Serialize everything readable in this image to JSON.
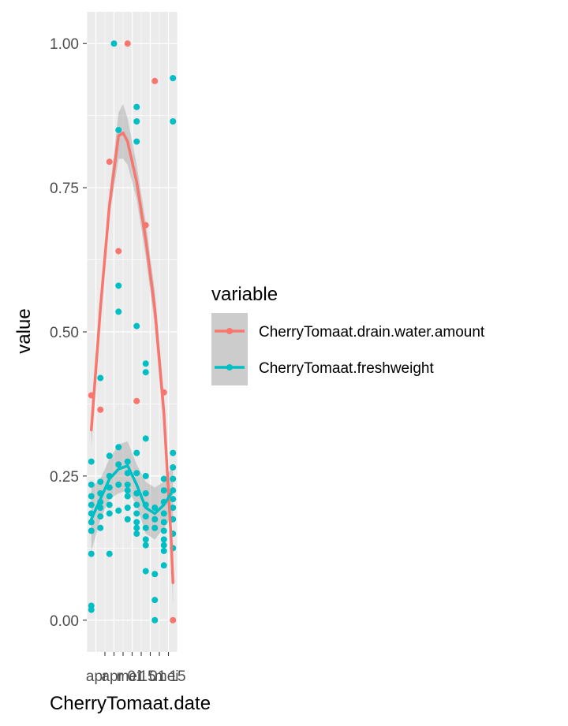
{
  "chart_data": {
    "type": "scatter",
    "xlabel": "CherryTomaat.date",
    "ylabel": "value",
    "ylim": [
      -0.055,
      1.055
    ],
    "x_categories": [
      "apr",
      "apr",
      "mei",
      "01",
      "15",
      "01",
      "mei",
      "15"
    ],
    "x_tick_labels": [
      "apr",
      "apr",
      "mei",
      "01",
      "15",
      "01",
      "mei",
      "15"
    ],
    "y_ticks": [
      0.0,
      0.25,
      0.5,
      0.75,
      1.0
    ],
    "y_tick_labels": [
      "0.00",
      "0.25",
      "0.50",
      "0.75",
      "1.00"
    ],
    "grid": true,
    "background": "#EBEBEB",
    "legend": {
      "title": "variable",
      "placement": "right",
      "entries": [
        {
          "name": "CherryTomaat.drain.water.amount",
          "color": "#F8766D"
        },
        {
          "name": "CherryTomaat.freshweight",
          "color": "#00BFC4"
        }
      ]
    },
    "series": [
      {
        "name": "CherryTomaat.drain.water.amount",
        "color": "#F8766D",
        "points": [
          [
            0.5,
            0.39
          ],
          [
            1.5,
            0.365
          ],
          [
            2.5,
            0.795
          ],
          [
            3.5,
            0.64
          ],
          [
            4.5,
            1.0
          ],
          [
            5.5,
            0.38
          ],
          [
            6.5,
            0.685
          ],
          [
            7.5,
            0.935
          ],
          [
            8.5,
            0.395
          ],
          [
            9.5,
            0.0
          ]
        ],
        "smooth": [
          [
            0.5,
            0.33
          ],
          [
            1.5,
            0.54
          ],
          [
            2.5,
            0.72
          ],
          [
            3.5,
            0.84
          ],
          [
            4.0,
            0.845
          ],
          [
            4.5,
            0.83
          ],
          [
            5.5,
            0.76
          ],
          [
            6.5,
            0.66
          ],
          [
            7.5,
            0.54
          ],
          [
            8.5,
            0.36
          ],
          [
            9.3,
            0.14
          ],
          [
            9.5,
            0.065
          ]
        ],
        "smooth_band": [
          [
            0.5,
            0.3,
            0.36
          ],
          [
            1.5,
            0.52,
            0.56
          ],
          [
            2.5,
            0.7,
            0.74
          ],
          [
            3.5,
            0.8,
            0.88
          ],
          [
            4.0,
            0.8,
            0.895
          ],
          [
            4.5,
            0.79,
            0.87
          ],
          [
            5.5,
            0.73,
            0.79
          ],
          [
            6.5,
            0.63,
            0.69
          ],
          [
            7.5,
            0.51,
            0.57
          ],
          [
            8.5,
            0.33,
            0.39
          ],
          [
            9.3,
            0.11,
            0.17
          ],
          [
            9.5,
            0.025,
            0.105
          ]
        ]
      },
      {
        "name": "CherryTomaat.freshweight",
        "color": "#00BFC4",
        "points": [
          [
            0.5,
            0.025
          ],
          [
            0.5,
            0.018
          ],
          [
            0.5,
            0.115
          ],
          [
            0.5,
            0.155
          ],
          [
            0.5,
            0.17
          ],
          [
            0.5,
            0.185
          ],
          [
            0.5,
            0.2
          ],
          [
            0.5,
            0.215
          ],
          [
            0.5,
            0.235
          ],
          [
            0.5,
            0.275
          ],
          [
            1.5,
            0.42
          ],
          [
            1.5,
            0.16
          ],
          [
            1.5,
            0.18
          ],
          [
            1.5,
            0.195
          ],
          [
            1.5,
            0.205
          ],
          [
            1.5,
            0.22
          ],
          [
            1.5,
            0.24
          ],
          [
            2.5,
            0.115
          ],
          [
            2.5,
            0.185
          ],
          [
            2.5,
            0.2
          ],
          [
            2.5,
            0.215
          ],
          [
            2.5,
            0.23
          ],
          [
            2.5,
            0.25
          ],
          [
            2.5,
            0.285
          ],
          [
            3.0,
            1.0
          ],
          [
            3.5,
            0.85
          ],
          [
            3.5,
            0.58
          ],
          [
            3.5,
            0.535
          ],
          [
            3.5,
            0.3
          ],
          [
            3.5,
            0.27
          ],
          [
            3.5,
            0.235
          ],
          [
            3.5,
            0.19
          ],
          [
            4.5,
            0.175
          ],
          [
            4.5,
            0.195
          ],
          [
            4.5,
            0.215
          ],
          [
            4.5,
            0.235
          ],
          [
            4.5,
            0.255
          ],
          [
            4.5,
            0.275
          ],
          [
            4.5,
            0.225
          ],
          [
            5.5,
            0.89
          ],
          [
            5.5,
            0.865
          ],
          [
            5.5,
            0.83
          ],
          [
            5.5,
            0.51
          ],
          [
            5.5,
            0.29
          ],
          [
            5.5,
            0.255
          ],
          [
            5.5,
            0.22
          ],
          [
            5.5,
            0.2
          ],
          [
            5.5,
            0.185
          ],
          [
            5.5,
            0.17
          ],
          [
            5.5,
            0.16
          ],
          [
            5.5,
            0.15
          ],
          [
            6.5,
            0.445
          ],
          [
            6.5,
            0.43
          ],
          [
            6.5,
            0.315
          ],
          [
            6.5,
            0.25
          ],
          [
            6.5,
            0.22
          ],
          [
            6.5,
            0.2
          ],
          [
            6.5,
            0.18
          ],
          [
            6.5,
            0.16
          ],
          [
            6.5,
            0.14
          ],
          [
            6.5,
            0.13
          ],
          [
            6.5,
            0.085
          ],
          [
            7.5,
            0.08
          ],
          [
            7.5,
            0.035
          ],
          [
            7.5,
            0.0
          ],
          [
            7.5,
            0.195
          ],
          [
            7.5,
            0.175
          ],
          [
            7.5,
            0.16
          ],
          [
            8.5,
            0.245
          ],
          [
            8.5,
            0.225
          ],
          [
            8.5,
            0.205
          ],
          [
            8.5,
            0.185
          ],
          [
            8.5,
            0.17
          ],
          [
            8.5,
            0.155
          ],
          [
            8.5,
            0.14
          ],
          [
            8.5,
            0.13
          ],
          [
            8.5,
            0.12
          ],
          [
            8.5,
            0.095
          ],
          [
            9.5,
            0.94
          ],
          [
            9.5,
            0.865
          ],
          [
            9.5,
            0.29
          ],
          [
            9.5,
            0.265
          ],
          [
            9.5,
            0.245
          ],
          [
            9.5,
            0.225
          ],
          [
            9.5,
            0.21
          ],
          [
            9.5,
            0.195
          ],
          [
            9.5,
            0.175
          ],
          [
            9.5,
            0.15
          ],
          [
            9.5,
            0.125
          ]
        ],
        "smooth": [
          [
            0.5,
            0.175
          ],
          [
            1.5,
            0.21
          ],
          [
            2.5,
            0.245
          ],
          [
            3.5,
            0.262
          ],
          [
            4.5,
            0.268
          ],
          [
            5.5,
            0.235
          ],
          [
            6.5,
            0.195
          ],
          [
            7.5,
            0.185
          ],
          [
            8.5,
            0.2
          ],
          [
            9.5,
            0.225
          ]
        ],
        "smooth_band": [
          [
            0.5,
            0.12,
            0.23
          ],
          [
            1.5,
            0.175,
            0.245
          ],
          [
            2.5,
            0.21,
            0.28
          ],
          [
            3.5,
            0.22,
            0.305
          ],
          [
            4.5,
            0.225,
            0.31
          ],
          [
            5.5,
            0.2,
            0.27
          ],
          [
            6.5,
            0.15,
            0.24
          ],
          [
            7.5,
            0.14,
            0.23
          ],
          [
            8.5,
            0.16,
            0.24
          ],
          [
            9.5,
            0.18,
            0.27
          ]
        ]
      }
    ]
  }
}
